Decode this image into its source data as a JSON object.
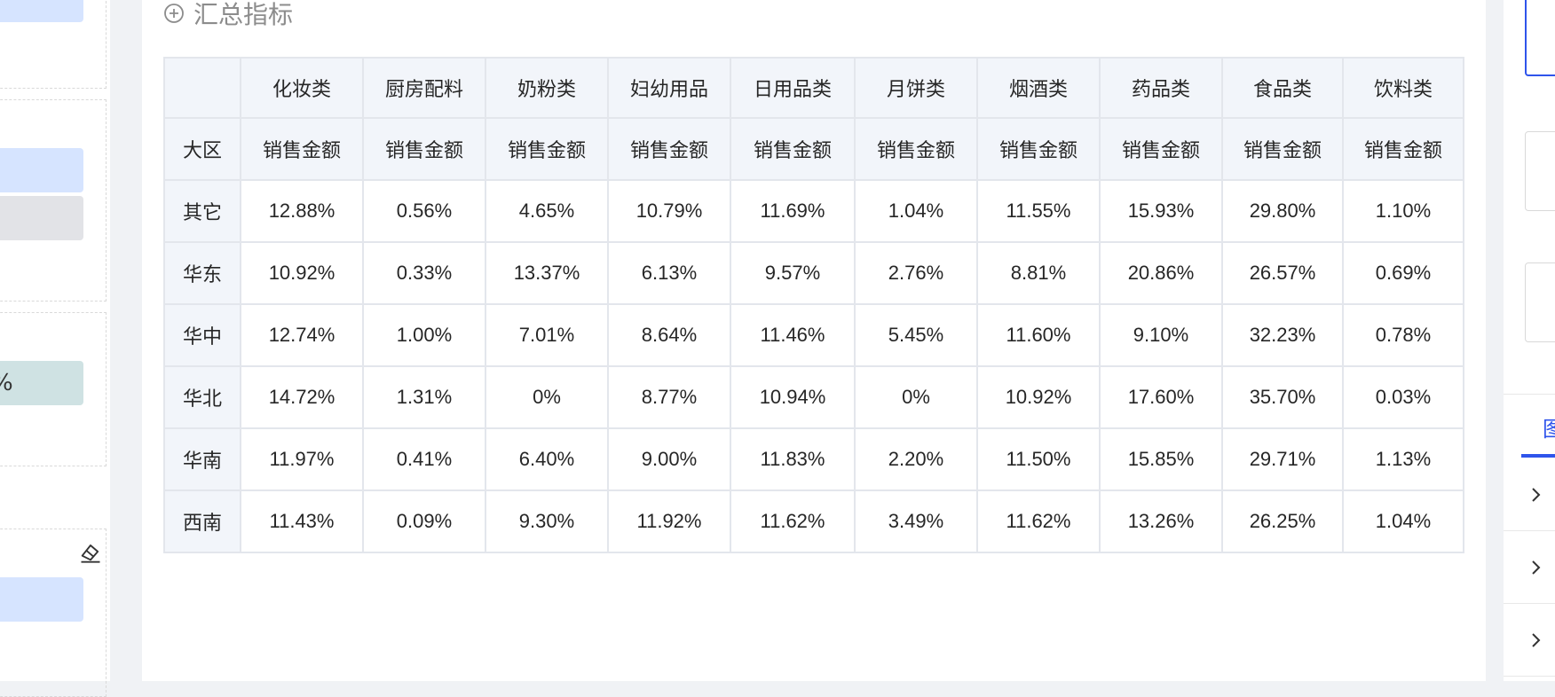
{
  "left_panel": {
    "teal_pill_text": "%"
  },
  "summary": {
    "title": "汇总指标"
  },
  "table": {
    "region_header": "大区",
    "categories": [
      "化妆类",
      "厨房配料",
      "奶粉类",
      "妇幼用品",
      "日用品类",
      "月饼类",
      "烟酒类",
      "药品类",
      "食品类",
      "饮料类"
    ],
    "measure_label": "销售金额",
    "rows": [
      {
        "region": "其它",
        "values": [
          "12.88%",
          "0.56%",
          "4.65%",
          "10.79%",
          "11.69%",
          "1.04%",
          "11.55%",
          "15.93%",
          "29.80%",
          "1.10%"
        ]
      },
      {
        "region": "华东",
        "values": [
          "10.92%",
          "0.33%",
          "13.37%",
          "6.13%",
          "9.57%",
          "2.76%",
          "8.81%",
          "20.86%",
          "26.57%",
          "0.69%"
        ]
      },
      {
        "region": "华中",
        "values": [
          "12.74%",
          "1.00%",
          "7.01%",
          "8.64%",
          "11.46%",
          "5.45%",
          "11.60%",
          "9.10%",
          "32.23%",
          "0.78%"
        ]
      },
      {
        "region": "华北",
        "values": [
          "14.72%",
          "1.31%",
          "0%",
          "8.77%",
          "10.94%",
          "0%",
          "10.92%",
          "17.60%",
          "35.70%",
          "0.03%"
        ]
      },
      {
        "region": "华南",
        "values": [
          "11.97%",
          "0.41%",
          "6.40%",
          "9.00%",
          "11.83%",
          "2.20%",
          "11.50%",
          "15.85%",
          "29.71%",
          "1.13%"
        ]
      },
      {
        "region": "西南",
        "values": [
          "11.43%",
          "0.09%",
          "9.30%",
          "11.92%",
          "11.62%",
          "3.49%",
          "11.62%",
          "13.26%",
          "26.25%",
          "1.04%"
        ]
      }
    ]
  },
  "right_panel": {
    "tab_label": "图"
  },
  "colors": {
    "accent": "#2f54eb",
    "header_bg": "#f2f5fa",
    "border": "#e3e6ec"
  }
}
